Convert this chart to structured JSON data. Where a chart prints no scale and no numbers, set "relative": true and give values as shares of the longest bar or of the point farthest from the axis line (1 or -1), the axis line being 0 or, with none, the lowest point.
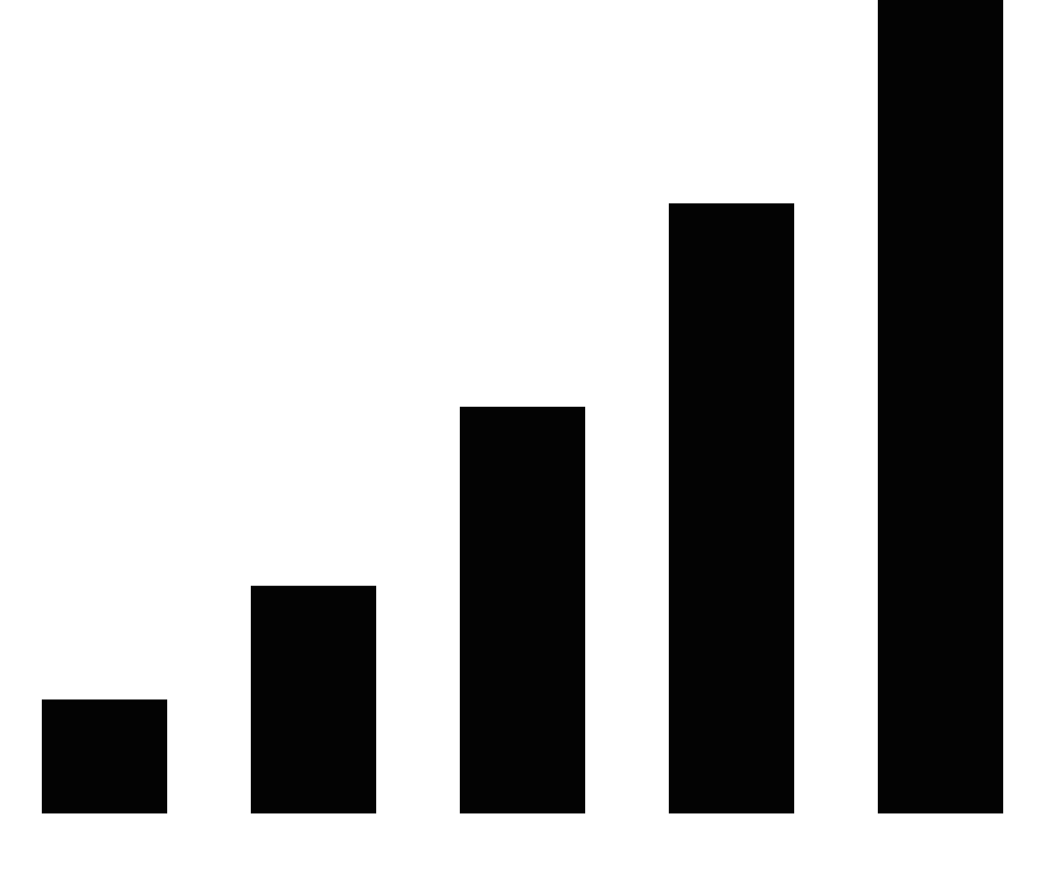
{
  "chart_data": {
    "type": "bar",
    "relative": true,
    "color": "#030303",
    "categories": [
      null,
      null,
      null,
      null,
      null
    ],
    "values": [
      0.14,
      0.28,
      0.5,
      0.75,
      1
    ]
  }
}
